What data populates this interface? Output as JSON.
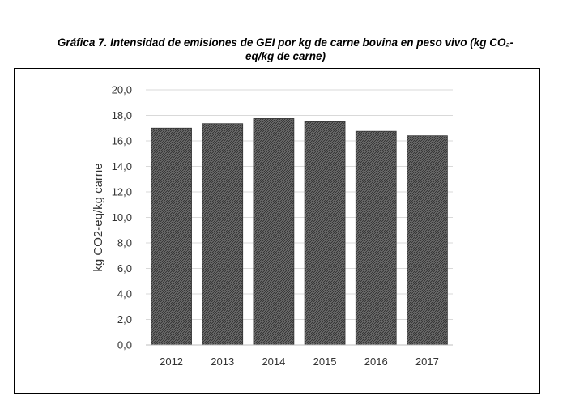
{
  "chart_data": {
    "type": "bar",
    "title_line1": "Gráfica 7. Intensidad de emisiones de GEI por kg de carne bovina en peso vivo (kg CO₂-",
    "title_line2": "eq/kg de carne)",
    "ylabel": "kg CO2-eq/kg carne",
    "xlabel": "",
    "categories": [
      "2012",
      "2013",
      "2014",
      "2015",
      "2016",
      "2017"
    ],
    "values": [
      17.0,
      17.35,
      17.75,
      17.5,
      16.75,
      16.4
    ],
    "ylim": [
      0,
      20
    ],
    "yticks": [
      "0,0",
      "2,0",
      "4,0",
      "6,0",
      "8,0",
      "10,0",
      "12,0",
      "14,0",
      "16,0",
      "18,0",
      "20,0"
    ],
    "grid": true,
    "legend": "none",
    "colors": {
      "bar_fill": "#5a5a5a",
      "bar_edge": "#333333",
      "grid": "#d9d9d9",
      "axis": "#bfbfbf"
    }
  }
}
